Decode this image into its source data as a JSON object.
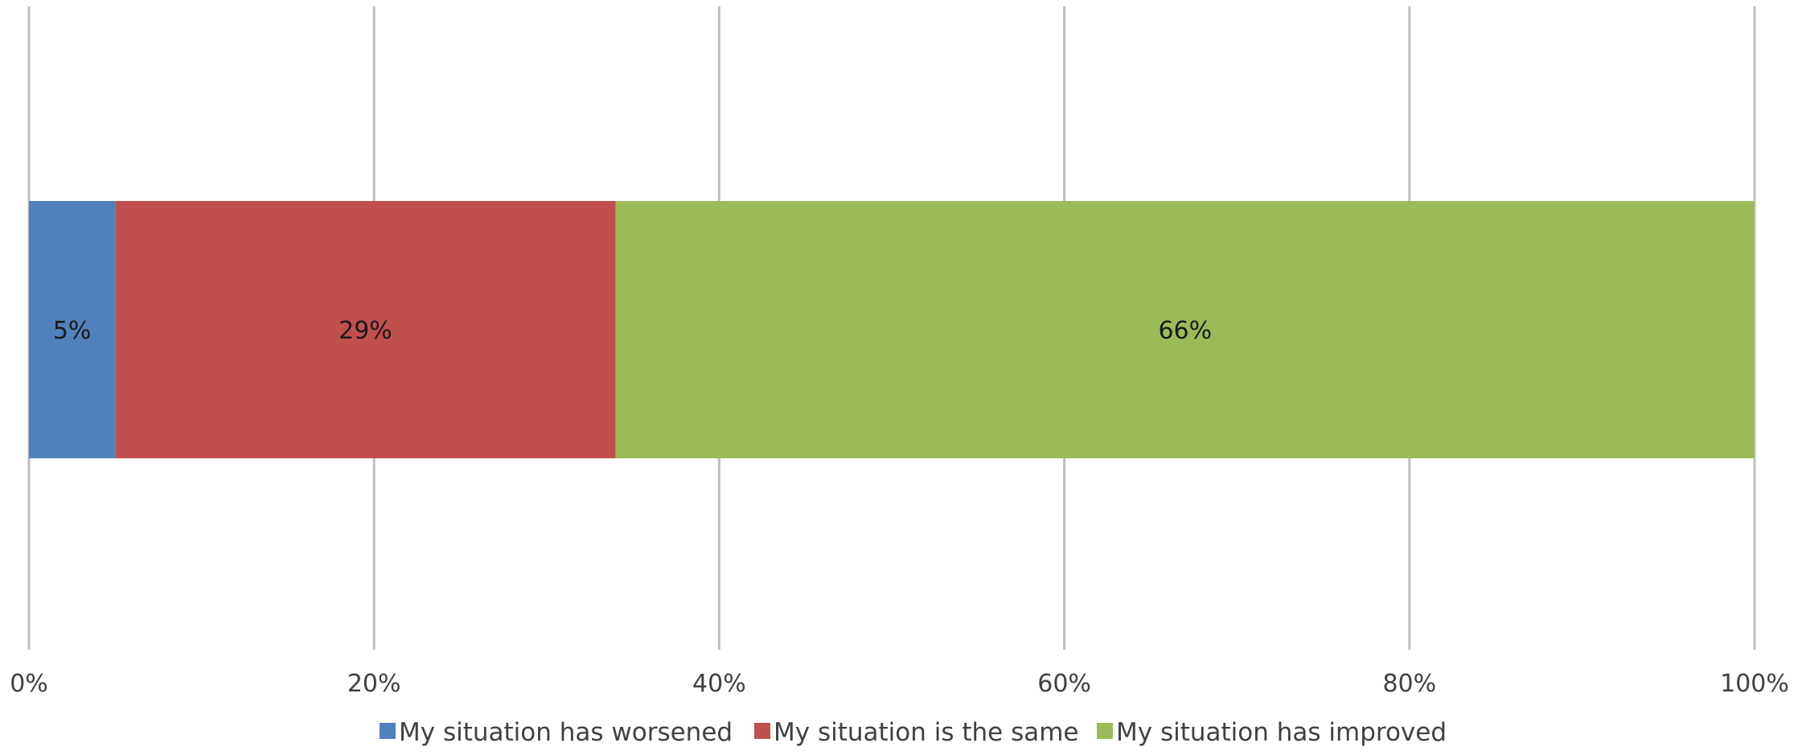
{
  "chart_data": {
    "type": "bar",
    "orientation": "horizontal",
    "stacked": true,
    "percent_stacked": true,
    "categories": [
      ""
    ],
    "series": [
      {
        "name": "My situation has worsened",
        "values": [
          5
        ],
        "label": "5%",
        "color": "#4f81bd"
      },
      {
        "name": "My situation is the same",
        "values": [
          29
        ],
        "label": "29%",
        "color": "#c0504d"
      },
      {
        "name": "My situation has improved",
        "values": [
          66
        ],
        "label": "66%",
        "color": "#9bbb59"
      }
    ],
    "x_ticks": [
      "0%",
      "20%",
      "40%",
      "60%",
      "80%",
      "100%"
    ],
    "xlim": [
      0,
      100
    ],
    "grid": true,
    "gridline_color": "#bfbfbf",
    "legend_position": "bottom",
    "title": "",
    "xlabel": "",
    "ylabel": ""
  }
}
